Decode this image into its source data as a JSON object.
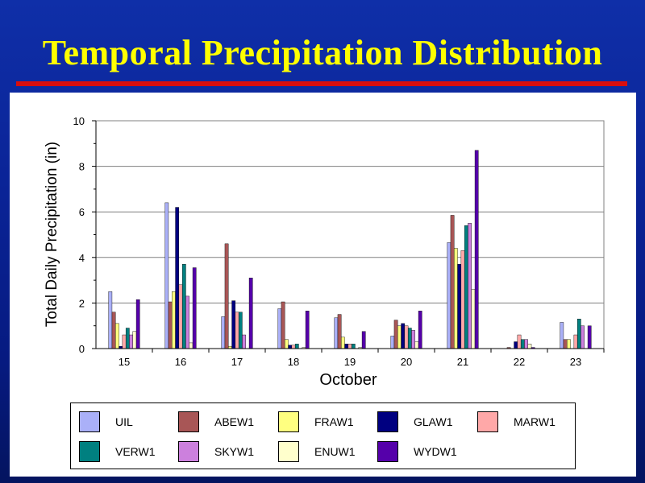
{
  "slide": {
    "title": "Temporal Precipitation Distribution"
  },
  "chart_data": {
    "type": "bar",
    "title": "",
    "xlabel": "October",
    "ylabel": "Total Daily Precipitation (in)",
    "ylim": [
      0,
      10
    ],
    "yticks": [
      0,
      2,
      4,
      6,
      8,
      10
    ],
    "grid": true,
    "legend_position": "bottom",
    "categories": [
      "15",
      "16",
      "17",
      "18",
      "19",
      "20",
      "21",
      "22",
      "23"
    ],
    "series": [
      {
        "name": "UIL",
        "color": "#aab0f8",
        "values": [
          2.5,
          6.4,
          1.4,
          1.75,
          1.35,
          0.55,
          4.65,
          0.0,
          1.15
        ]
      },
      {
        "name": "ABEW1",
        "color": "#a85656",
        "values": [
          1.6,
          2.05,
          4.6,
          2.05,
          1.5,
          1.25,
          5.85,
          0.05,
          0.4
        ]
      },
      {
        "name": "FRAW1",
        "color": "#ffff80",
        "values": [
          1.1,
          2.5,
          0.1,
          0.4,
          0.5,
          1.0,
          4.4,
          0.0,
          0.4
        ]
      },
      {
        "name": "GLAW1",
        "color": "#000080",
        "values": [
          0.1,
          6.2,
          2.1,
          0.15,
          0.2,
          1.1,
          3.7,
          0.3,
          0.0
        ]
      },
      {
        "name": "MARW1",
        "color": "#ffa8a8",
        "values": [
          0.6,
          2.8,
          1.6,
          0.15,
          0.2,
          1.0,
          4.3,
          0.6,
          0.6
        ]
      },
      {
        "name": "VERW1",
        "color": "#008080",
        "values": [
          0.9,
          3.7,
          1.6,
          0.2,
          0.2,
          0.9,
          5.4,
          0.4,
          1.3
        ]
      },
      {
        "name": "SKYW1",
        "color": "#cc80dd",
        "values": [
          0.6,
          2.3,
          0.6,
          0.0,
          0.0,
          0.8,
          5.5,
          0.4,
          1.0
        ]
      },
      {
        "name": "ENUW1",
        "color": "#ffffcc",
        "values": [
          0.75,
          0.25,
          0.0,
          0.05,
          0.05,
          0.3,
          2.6,
          0.2,
          0.0
        ]
      },
      {
        "name": "WYDW1",
        "color": "#5500aa",
        "values": [
          2.15,
          3.55,
          3.1,
          1.65,
          0.75,
          1.65,
          8.7,
          0.05,
          1.0
        ]
      }
    ]
  }
}
